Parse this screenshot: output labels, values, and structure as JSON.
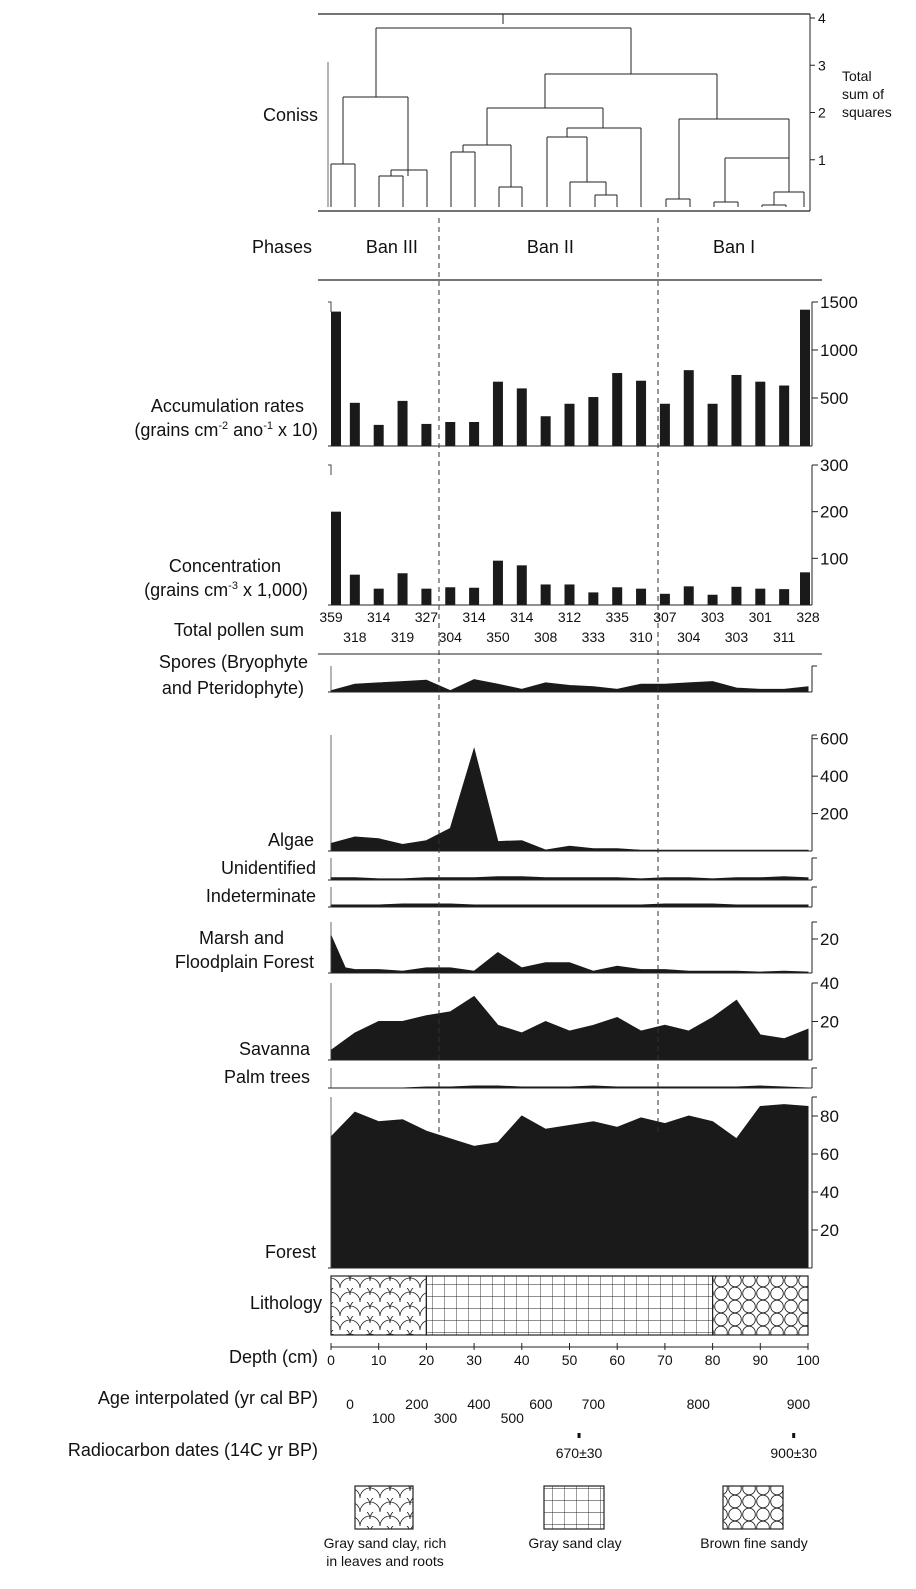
{
  "chart_data": {
    "type": "area",
    "x_unit": "Depth (cm)",
    "depth_ticks": [
      0,
      10,
      20,
      30,
      40,
      50,
      60,
      70,
      80,
      90,
      100
    ],
    "coniss": {
      "label": "Coniss",
      "axis_label_lines": [
        "Total",
        "sum of",
        "squares"
      ],
      "ticks": [
        1,
        2,
        3,
        4
      ],
      "ylim": [
        0,
        4
      ]
    },
    "phases": {
      "label": "Phases",
      "zones": [
        {
          "name": "Ban III",
          "from": 0,
          "to": 23
        },
        {
          "name": "Ban II",
          "from": 23,
          "to": 69
        },
        {
          "name": "Ban I",
          "from": 69,
          "to": 100
        }
      ]
    },
    "accumulation": {
      "label_lines": [
        "Accumulation rates",
        "(grains cm",
        "-2",
        " ano",
        "-1",
        " x 10)"
      ],
      "ticks": [
        500,
        1000,
        1500
      ],
      "ylim": [
        0,
        1500
      ],
      "depths": [
        0,
        5,
        10,
        15,
        20,
        25,
        30,
        35,
        40,
        45,
        50,
        55,
        60,
        65,
        70,
        75,
        80,
        85,
        90,
        95,
        100
      ],
      "values": [
        1400,
        450,
        220,
        470,
        230,
        250,
        250,
        670,
        600,
        310,
        440,
        510,
        760,
        680,
        440,
        790,
        440,
        740,
        670,
        630,
        1420
      ]
    },
    "concentration": {
      "label_lines": [
        "Concentration",
        "(grains cm",
        "-3",
        " x 1,000)"
      ],
      "ticks": [
        100,
        200,
        300
      ],
      "ylim": [
        0,
        300
      ],
      "depths": [
        0,
        5,
        10,
        15,
        20,
        25,
        30,
        35,
        40,
        45,
        50,
        55,
        60,
        65,
        70,
        75,
        80,
        85,
        90,
        95,
        100
      ],
      "values": [
        200,
        65,
        35,
        68,
        35,
        38,
        37,
        95,
        85,
        44,
        44,
        27,
        38,
        35,
        24,
        40,
        22,
        39,
        35,
        34,
        70
      ]
    },
    "pollen_sum": {
      "label": "Total pollen sum",
      "top_row": [
        "359",
        "314",
        "327",
        "314",
        "314",
        "312",
        "335",
        "307",
        "303",
        "301",
        "328"
      ],
      "bottom_row": [
        "318",
        "319",
        "304",
        "350",
        "308",
        "333",
        "310",
        "304",
        "303",
        "311"
      ]
    },
    "curves": [
      {
        "name": "Spores (Bryophyte and Pteridophyte)",
        "label_lines": [
          "Spores (Bryophyte",
          "and Pteridophyte)"
        ],
        "ticks": [],
        "ylim": [
          0,
          40
        ],
        "values": [
          [
            0,
            2
          ],
          [
            5,
            12
          ],
          [
            10,
            14
          ],
          [
            15,
            16
          ],
          [
            20,
            18
          ],
          [
            25,
            2
          ],
          [
            30,
            19
          ],
          [
            35,
            12
          ],
          [
            40,
            4
          ],
          [
            45,
            14
          ],
          [
            50,
            10
          ],
          [
            55,
            8
          ],
          [
            60,
            4
          ],
          [
            65,
            12
          ],
          [
            70,
            12
          ],
          [
            75,
            14
          ],
          [
            80,
            16
          ],
          [
            85,
            6
          ],
          [
            90,
            4
          ],
          [
            95,
            4
          ],
          [
            100,
            8
          ]
        ]
      },
      {
        "name": "Algae",
        "label_lines": [
          "Algae"
        ],
        "ticks": [
          200,
          400,
          600
        ],
        "ylim": [
          0,
          620
        ],
        "values": [
          [
            0,
            40
          ],
          [
            5,
            75
          ],
          [
            10,
            65
          ],
          [
            15,
            35
          ],
          [
            20,
            55
          ],
          [
            25,
            120
          ],
          [
            30,
            545
          ],
          [
            35,
            50
          ],
          [
            40,
            55
          ],
          [
            45,
            5
          ],
          [
            50,
            25
          ],
          [
            55,
            12
          ],
          [
            60,
            12
          ],
          [
            65,
            4
          ],
          [
            70,
            4
          ],
          [
            75,
            4
          ],
          [
            80,
            4
          ],
          [
            85,
            4
          ],
          [
            90,
            4
          ],
          [
            95,
            4
          ],
          [
            100,
            4
          ]
        ]
      },
      {
        "name": "Unidentified",
        "label_lines": [
          "Unidentified"
        ],
        "ticks": [],
        "ylim": [
          0,
          20
        ],
        "values": [
          [
            0,
            2
          ],
          [
            5,
            2
          ],
          [
            10,
            1
          ],
          [
            15,
            1
          ],
          [
            20,
            2
          ],
          [
            25,
            2
          ],
          [
            30,
            2
          ],
          [
            35,
            3
          ],
          [
            40,
            3
          ],
          [
            45,
            2
          ],
          [
            50,
            2
          ],
          [
            55,
            2
          ],
          [
            60,
            2
          ],
          [
            65,
            1
          ],
          [
            70,
            2
          ],
          [
            75,
            2
          ],
          [
            80,
            1
          ],
          [
            85,
            2
          ],
          [
            90,
            2
          ],
          [
            95,
            3
          ],
          [
            100,
            2
          ]
        ]
      },
      {
        "name": "Indeterminate",
        "label_lines": [
          "Indeterminate"
        ],
        "ticks": [],
        "ylim": [
          0,
          20
        ],
        "values": [
          [
            0,
            2
          ],
          [
            5,
            2
          ],
          [
            10,
            2
          ],
          [
            15,
            3
          ],
          [
            20,
            3
          ],
          [
            25,
            3
          ],
          [
            30,
            2
          ],
          [
            35,
            2
          ],
          [
            40,
            2
          ],
          [
            45,
            2
          ],
          [
            50,
            2
          ],
          [
            55,
            2
          ],
          [
            60,
            2
          ],
          [
            65,
            2
          ],
          [
            70,
            3
          ],
          [
            75,
            3
          ],
          [
            80,
            3
          ],
          [
            85,
            2
          ],
          [
            90,
            2
          ],
          [
            95,
            2
          ],
          [
            100,
            2
          ]
        ]
      },
      {
        "name": "Marsh and Floodplain Forest",
        "label_lines": [
          "Marsh and",
          "Floodplain Forest"
        ],
        "ticks": [
          20
        ],
        "ylim": [
          0,
          30
        ],
        "values": [
          [
            0,
            22
          ],
          [
            3,
            3
          ],
          [
            5,
            2
          ],
          [
            10,
            2
          ],
          [
            15,
            1
          ],
          [
            20,
            3
          ],
          [
            25,
            3
          ],
          [
            30,
            1
          ],
          [
            35,
            12
          ],
          [
            40,
            3
          ],
          [
            45,
            6
          ],
          [
            50,
            6
          ],
          [
            55,
            1
          ],
          [
            60,
            4
          ],
          [
            65,
            2
          ],
          [
            70,
            2
          ],
          [
            75,
            1
          ],
          [
            80,
            1
          ],
          [
            85,
            1
          ],
          [
            90,
            0.5
          ],
          [
            95,
            1
          ],
          [
            100,
            0.5
          ]
        ]
      },
      {
        "name": "Savanna",
        "label_lines": [
          "Savanna"
        ],
        "ticks": [
          20,
          40
        ],
        "ylim": [
          0,
          40
        ],
        "values": [
          [
            0,
            5
          ],
          [
            5,
            14
          ],
          [
            10,
            20
          ],
          [
            15,
            20
          ],
          [
            20,
            23
          ],
          [
            25,
            25
          ],
          [
            30,
            33
          ],
          [
            35,
            18
          ],
          [
            40,
            14
          ],
          [
            45,
            20
          ],
          [
            50,
            15
          ],
          [
            55,
            18
          ],
          [
            60,
            22
          ],
          [
            65,
            15
          ],
          [
            70,
            18
          ],
          [
            75,
            15
          ],
          [
            80,
            22
          ],
          [
            85,
            31
          ],
          [
            90,
            13
          ],
          [
            95,
            11
          ],
          [
            100,
            16
          ]
        ]
      },
      {
        "name": "Palm trees",
        "label_lines": [
          "Palm trees"
        ],
        "ticks": [],
        "ylim": [
          0,
          20
        ],
        "values": [
          [
            0,
            0
          ],
          [
            5,
            0
          ],
          [
            10,
            0
          ],
          [
            15,
            0
          ],
          [
            20,
            1
          ],
          [
            25,
            1
          ],
          [
            30,
            2
          ],
          [
            35,
            2
          ],
          [
            40,
            1
          ],
          [
            45,
            1
          ],
          [
            50,
            1
          ],
          [
            55,
            2
          ],
          [
            60,
            1
          ],
          [
            65,
            1
          ],
          [
            70,
            1
          ],
          [
            75,
            1
          ],
          [
            80,
            1
          ],
          [
            85,
            1
          ],
          [
            90,
            2
          ],
          [
            95,
            1
          ],
          [
            100,
            0
          ]
        ]
      },
      {
        "name": "Forest",
        "label_lines": [
          "Forest"
        ],
        "ticks": [
          20,
          40,
          60,
          80
        ],
        "ylim": [
          0,
          90
        ],
        "values": [
          [
            0,
            69
          ],
          [
            5,
            82
          ],
          [
            10,
            77
          ],
          [
            15,
            78
          ],
          [
            20,
            72
          ],
          [
            25,
            68
          ],
          [
            30,
            64
          ],
          [
            35,
            66
          ],
          [
            40,
            80
          ],
          [
            45,
            73
          ],
          [
            50,
            75
          ],
          [
            55,
            77
          ],
          [
            60,
            74
          ],
          [
            65,
            79
          ],
          [
            70,
            76
          ],
          [
            75,
            80
          ],
          [
            80,
            77
          ],
          [
            85,
            68
          ],
          [
            90,
            85
          ],
          [
            95,
            86
          ],
          [
            100,
            85
          ]
        ]
      }
    ],
    "lithology": {
      "label": "Lithology",
      "segments": [
        {
          "from": 0,
          "to": 20,
          "pattern": "scales"
        },
        {
          "from": 20,
          "to": 80,
          "pattern": "grid"
        },
        {
          "from": 80,
          "to": 100,
          "pattern": "circles"
        }
      ]
    },
    "depth_label": "Depth (cm)",
    "age": {
      "label": "Age interpolated (yr cal BP)",
      "upper": [
        {
          "t": "0",
          "d": 4
        },
        {
          "t": "200",
          "d": 18
        },
        {
          "t": "400",
          "d": 31
        },
        {
          "t": "600",
          "d": 44
        },
        {
          "t": "700",
          "d": 55
        },
        {
          "t": "800",
          "d": 77
        },
        {
          "t": "900",
          "d": 98
        }
      ],
      "lower": [
        {
          "t": "100",
          "d": 11
        },
        {
          "t": "300",
          "d": 24
        },
        {
          "t": "500",
          "d": 38
        }
      ]
    },
    "radiocarbon": {
      "label": "Radiocarbon dates (14C yr BP)",
      "dates": [
        {
          "t": "670±30",
          "d": 52
        },
        {
          "t": "900±30",
          "d": 97
        }
      ]
    },
    "legend": [
      {
        "pattern": "scales",
        "label_lines": [
          "Gray sand clay, rich",
          "in leaves and roots"
        ]
      },
      {
        "pattern": "grid",
        "label_lines": [
          "Gray sand clay"
        ]
      },
      {
        "pattern": "circles",
        "label_lines": [
          "Brown fine sandy"
        ]
      }
    ]
  }
}
